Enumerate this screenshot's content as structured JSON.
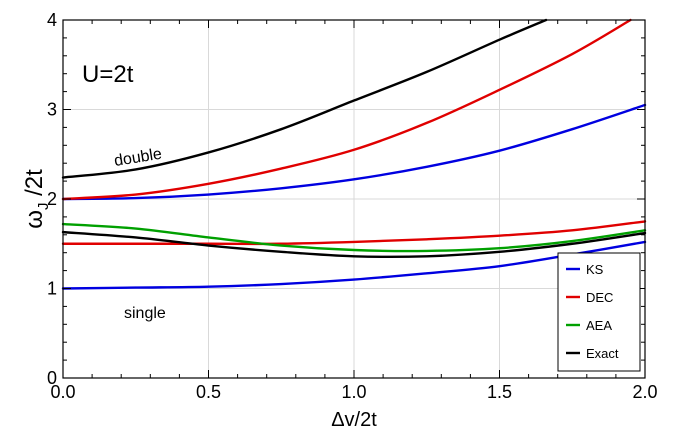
{
  "chart_data": {
    "type": "line",
    "xlabel": "Δv/2t",
    "ylabel": "ω_J /2t",
    "ylabel_main": "ω",
    "ylabel_sub": "J",
    "ylabel_tail": " /2t",
    "xlim": [
      0.0,
      2.0
    ],
    "ylim": [
      0,
      4
    ],
    "xticks": [
      0.0,
      0.5,
      1.0,
      1.5,
      2.0
    ],
    "xtick_labels": [
      "0.0",
      "0.5",
      "1.0",
      "1.5",
      "2.0"
    ],
    "yticks": [
      0,
      1,
      2,
      3,
      4
    ],
    "ytick_labels": [
      "0",
      "1",
      "2",
      "3",
      "4"
    ],
    "grid": true,
    "legend_position": "bottom-right",
    "annotations": [
      {
        "text": "U=2t",
        "role": "parameter"
      },
      {
        "text": "double",
        "role": "branch-label"
      },
      {
        "text": "single",
        "role": "branch-label"
      }
    ],
    "series": [
      {
        "name": "KS",
        "color": "#0000e0",
        "x": [
          0.0,
          0.25,
          0.5,
          0.75,
          1.0,
          1.25,
          1.5,
          1.75,
          2.0
        ],
        "y": [
          1.0,
          1.01,
          1.02,
          1.05,
          1.1,
          1.17,
          1.25,
          1.38,
          1.52
        ]
      },
      {
        "name": "DEC",
        "color": "#e00000",
        "x": [
          0.0,
          0.25,
          0.5,
          0.75,
          1.0,
          1.25,
          1.5,
          1.75,
          2.0
        ],
        "y": [
          1.5,
          1.5,
          1.5,
          1.5,
          1.52,
          1.55,
          1.59,
          1.65,
          1.75
        ]
      },
      {
        "name": "AEA",
        "color": "#00a000",
        "x": [
          0.0,
          0.25,
          0.5,
          0.75,
          1.0,
          1.25,
          1.5,
          1.75,
          2.0
        ],
        "y": [
          1.72,
          1.67,
          1.57,
          1.48,
          1.43,
          1.42,
          1.45,
          1.53,
          1.65
        ]
      },
      {
        "name": "Exact",
        "color": "#000000",
        "x": [
          0.0,
          0.25,
          0.5,
          0.75,
          1.0,
          1.25,
          1.5,
          1.75,
          2.0
        ],
        "y": [
          1.63,
          1.57,
          1.48,
          1.41,
          1.36,
          1.36,
          1.41,
          1.5,
          1.62
        ]
      },
      {
        "color": "#0000e0",
        "x": [
          0.0,
          0.25,
          0.5,
          0.75,
          1.0,
          1.25,
          1.5,
          1.75,
          2.0
        ],
        "y": [
          2.0,
          2.01,
          2.05,
          2.12,
          2.22,
          2.36,
          2.54,
          2.78,
          3.05
        ]
      },
      {
        "color": "#e00000",
        "x": [
          0.0,
          0.25,
          0.5,
          0.75,
          1.0,
          1.25,
          1.5,
          1.75,
          1.95
        ],
        "y": [
          2.0,
          2.05,
          2.17,
          2.34,
          2.55,
          2.85,
          3.22,
          3.62,
          4.0
        ]
      },
      {
        "color": "#000000",
        "x": [
          0.0,
          0.25,
          0.5,
          0.75,
          1.0,
          1.25,
          1.5,
          1.66
        ],
        "y": [
          2.24,
          2.33,
          2.52,
          2.78,
          3.1,
          3.42,
          3.78,
          4.0
        ]
      }
    ]
  }
}
